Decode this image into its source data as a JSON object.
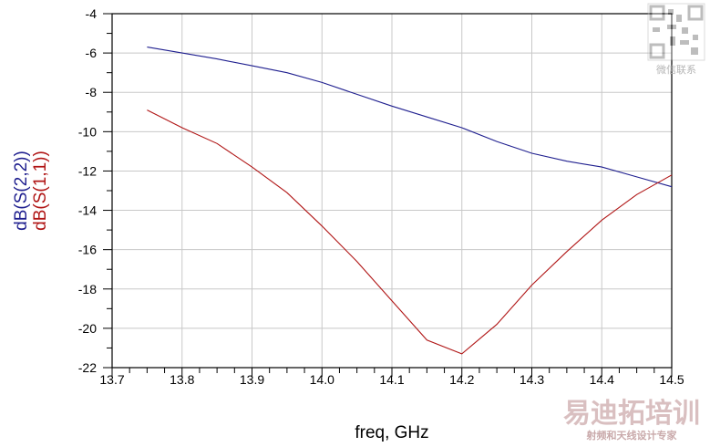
{
  "chart_data": {
    "type": "line",
    "xlabel": "freq, GHz",
    "ylabel": "",
    "xlim": [
      13.7,
      14.5
    ],
    "ylim": [
      -22,
      -4
    ],
    "x_ticks": [
      "13.7",
      "13.8",
      "13.9",
      "14.0",
      "14.1",
      "14.2",
      "14.3",
      "14.4",
      "14.5"
    ],
    "y_ticks": [
      "-4",
      "-6",
      "-8",
      "-10",
      "-12",
      "-14",
      "-16",
      "-18",
      "-20",
      "-22"
    ],
    "grid": true,
    "legend": "left-vertical",
    "series": [
      {
        "name": "dB(S(2,2))",
        "color": "#1f1f8f",
        "x": [
          13.75,
          13.8,
          13.85,
          13.9,
          13.95,
          14.0,
          14.05,
          14.1,
          14.15,
          14.2,
          14.25,
          14.3,
          14.35,
          14.4,
          14.45,
          14.5
        ],
        "y": [
          -5.7,
          -6.0,
          -6.3,
          -6.65,
          -7.0,
          -7.5,
          -8.1,
          -8.7,
          -9.25,
          -9.8,
          -10.5,
          -11.1,
          -11.5,
          -11.8,
          -12.3,
          -12.8
        ]
      },
      {
        "name": "dB(S(1,1))",
        "color": "#b01515",
        "x": [
          13.75,
          13.8,
          13.85,
          13.9,
          13.95,
          14.0,
          14.05,
          14.1,
          14.15,
          14.2,
          14.25,
          14.3,
          14.35,
          14.4,
          14.45,
          14.5
        ],
        "y": [
          -8.9,
          -9.8,
          -10.6,
          -11.8,
          -13.1,
          -14.8,
          -16.6,
          -18.6,
          -20.6,
          -21.3,
          -19.8,
          -17.8,
          -16.1,
          -14.5,
          -13.2,
          -12.2
        ]
      }
    ]
  },
  "watermark": {
    "main": "易迪拓培训",
    "sub": "射频和天线设计专家",
    "qr_caption": "微信联系"
  }
}
